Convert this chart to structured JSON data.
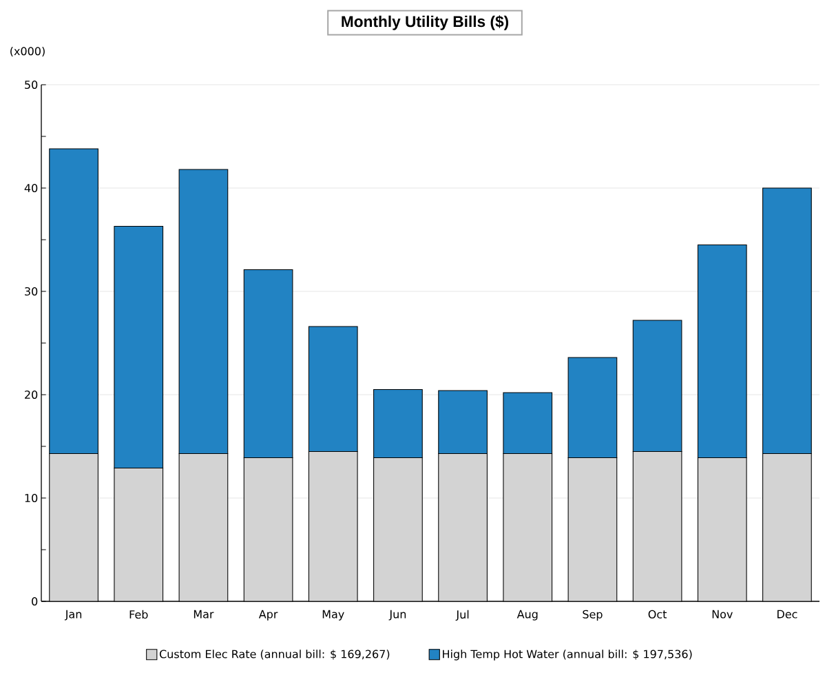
{
  "chart_data": {
    "type": "bar",
    "title": "Monthly Utility Bills ($)",
    "ylabel": "(x000)",
    "categories": [
      "Jan",
      "Feb",
      "Mar",
      "Apr",
      "May",
      "Jun",
      "Jul",
      "Aug",
      "Sep",
      "Oct",
      "Nov",
      "Dec"
    ],
    "series": [
      {
        "name": "Custom Elec Rate (annual bill: $ 169,267)",
        "color": "#d3d3d3",
        "values": [
          14.3,
          12.9,
          14.3,
          13.9,
          14.5,
          13.9,
          14.3,
          14.3,
          13.9,
          14.5,
          13.9,
          14.3
        ]
      },
      {
        "name": "High Temp Hot Water (annual bill: $ 197,536)",
        "color": "#2283c3",
        "values": [
          29.5,
          23.4,
          27.5,
          18.2,
          12.1,
          6.6,
          6.1,
          5.9,
          9.7,
          12.7,
          20.6,
          25.7
        ]
      }
    ],
    "stacked": true,
    "ylim": [
      0,
      50
    ],
    "yticks": [
      0,
      10,
      20,
      30,
      40,
      50
    ],
    "grid": "y",
    "legend": "bottom"
  }
}
